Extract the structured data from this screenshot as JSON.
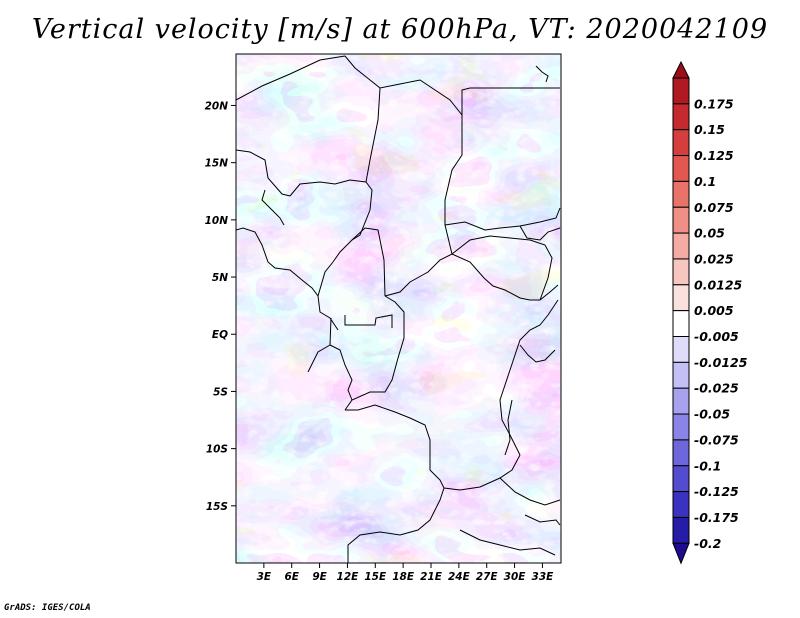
{
  "title": "Vertical velocity [m/s] at 600hPa, VT: 2020042109",
  "credit": "GrADS: IGES/COLA",
  "map": {
    "lon_range": [
      0,
      35
    ],
    "lat_range": [
      -20,
      24.5
    ],
    "lat_ticks": [
      {
        "value": 20,
        "label": "20N"
      },
      {
        "value": 15,
        "label": "15N"
      },
      {
        "value": 10,
        "label": "10N"
      },
      {
        "value": 5,
        "label": "5N"
      },
      {
        "value": 0,
        "label": "EQ"
      },
      {
        "value": -5,
        "label": "5S"
      },
      {
        "value": -10,
        "label": "10S"
      },
      {
        "value": -15,
        "label": "15S"
      }
    ],
    "lon_ticks": [
      {
        "value": 3,
        "label": "3E"
      },
      {
        "value": 6,
        "label": "6E"
      },
      {
        "value": 9,
        "label": "9E"
      },
      {
        "value": 12,
        "label": "12E"
      },
      {
        "value": 15,
        "label": "15E"
      },
      {
        "value": 18,
        "label": "18E"
      },
      {
        "value": 21,
        "label": "21E"
      },
      {
        "value": 24,
        "label": "24E"
      },
      {
        "value": 27,
        "label": "27E"
      },
      {
        "value": 30,
        "label": "30E"
      },
      {
        "value": 33,
        "label": "33E"
      }
    ]
  },
  "colorbar": {
    "levels": [
      {
        "label": "0.175",
        "color": "#b01822"
      },
      {
        "label": "0.15",
        "color": "#c42a2f"
      },
      {
        "label": "0.125",
        "color": "#d43e3c"
      },
      {
        "label": "0.1",
        "color": "#e0584f"
      },
      {
        "label": "0.075",
        "color": "#e87368"
      },
      {
        "label": "0.05",
        "color": "#ef8f86"
      },
      {
        "label": "0.025",
        "color": "#f4aba4"
      },
      {
        "label": "0.0125",
        "color": "#f8c6c1"
      },
      {
        "label": "0.005",
        "color": "#fbe1de"
      },
      {
        "label": "-0.005",
        "color": "#ffffff"
      },
      {
        "label": "-0.0125",
        "color": "#dedcfa"
      },
      {
        "label": "-0.025",
        "color": "#c3c0f5"
      },
      {
        "label": "-0.05",
        "color": "#a6a2ee"
      },
      {
        "label": "-0.075",
        "color": "#8a84e6"
      },
      {
        "label": "-0.1",
        "color": "#6e67dc"
      },
      {
        "label": "-0.125",
        "color": "#544ccf"
      },
      {
        "label": "-0.175",
        "color": "#3b32bf"
      },
      {
        "label": "-0.2",
        "color": "#271ca8"
      }
    ],
    "top_color": "#9c0d18",
    "bottom_color": "#1d0c8f"
  }
}
